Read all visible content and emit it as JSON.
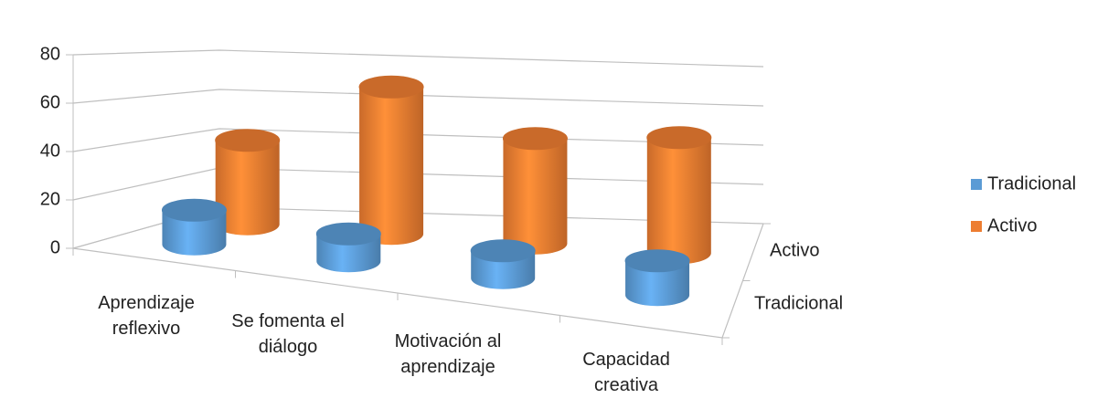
{
  "chart_data": {
    "type": "bar3d",
    "categories": [
      "Aprendizaje reflexivo",
      "Se fomenta el diálogo",
      "Motivación al aprendizaje",
      "Capacidad creativa"
    ],
    "series": [
      {
        "name": "Tradicional",
        "color": "#5b9bd5",
        "values": [
          15,
          12,
          12,
          15
        ]
      },
      {
        "name": "Activo",
        "color": "#ed7d31",
        "values": [
          40,
          70,
          50,
          55
        ]
      }
    ],
    "ylim": [
      0,
      80
    ],
    "yticks": [
      0,
      20,
      40,
      60,
      80
    ],
    "grid": true,
    "legend": "right"
  }
}
